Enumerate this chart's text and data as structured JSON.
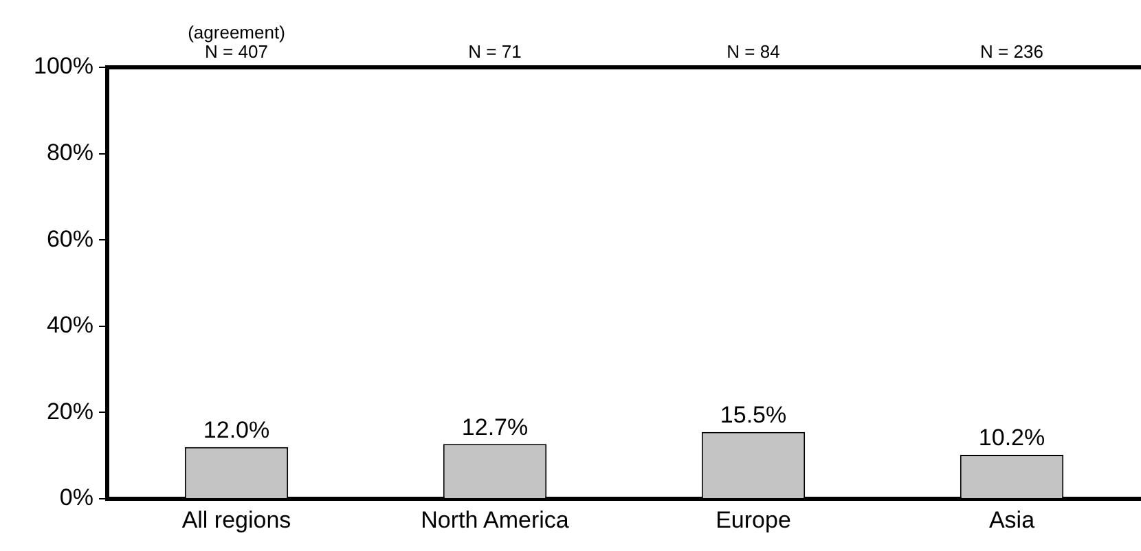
{
  "chart_data": {
    "type": "bar",
    "categories": [
      "All regions",
      "North America",
      "Europe",
      "Asia"
    ],
    "values": [
      12.0,
      12.7,
      15.5,
      10.2
    ],
    "value_labels": [
      "12.0%",
      "12.7%",
      "15.5%",
      "10.2%"
    ],
    "color": "#c4c4c4",
    "ylim": [
      0,
      100
    ],
    "yticks": [
      {
        "value": 0,
        "label": "0%"
      },
      {
        "value": 20,
        "label": "20%"
      },
      {
        "value": 40,
        "label": "40%"
      },
      {
        "value": 60,
        "label": "60%"
      },
      {
        "value": 80,
        "label": "80%"
      },
      {
        "value": 100,
        "label": "100%"
      }
    ],
    "grid": false,
    "annotations": [
      "(agreement)",
      "N = 407",
      "N = 71",
      "N = 84",
      "N = 236"
    ]
  }
}
